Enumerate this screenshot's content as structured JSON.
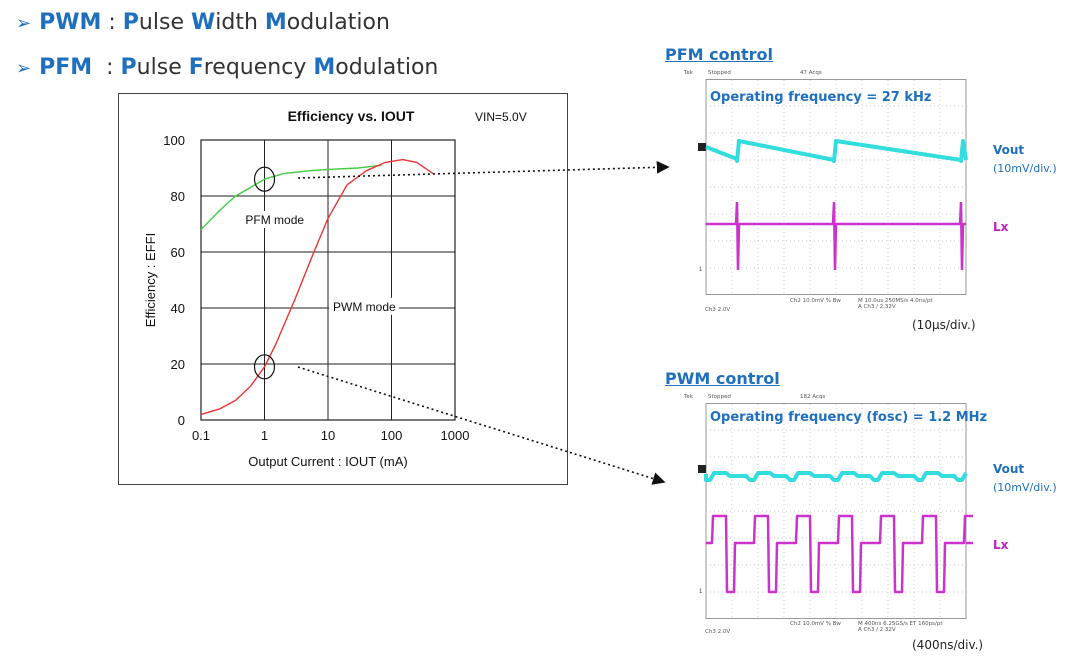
{
  "bullets": [
    {
      "abbr": "PWM",
      "sep": " : ",
      "parts": [
        {
          "hl": "P",
          "rest": "ulse "
        },
        {
          "hl": "W",
          "rest": "idth "
        },
        {
          "hl": "M",
          "rest": "odulation"
        }
      ]
    },
    {
      "abbr": "PFM",
      "sep": "  : ",
      "parts": [
        {
          "hl": "P",
          "rest": "ulse "
        },
        {
          "hl": "F",
          "rest": "requency "
        },
        {
          "hl": "M",
          "rest": "odulation"
        }
      ]
    }
  ],
  "chart_data": {
    "type": "line",
    "title": "Efficiency vs. IOUT",
    "condition": "VIN=5.0V",
    "xlabel": "Output Current : IOUT (mA)",
    "ylabel": "Efficiency : EFFI",
    "x_scale": "log",
    "xlim": [
      0.1,
      1000
    ],
    "ylim": [
      0,
      100
    ],
    "x_ticks": [
      "0.1",
      "1",
      "10",
      "100",
      "1000"
    ],
    "y_ticks": [
      "0",
      "20",
      "40",
      "60",
      "80",
      "100"
    ],
    "grid": true,
    "series": [
      {
        "name": "PFM mode",
        "color": "#44cc44",
        "x": [
          0.1,
          0.2,
          0.35,
          0.6,
          1,
          2,
          5,
          10,
          30,
          70
        ],
        "y": [
          68,
          75,
          80,
          83,
          86,
          88,
          89,
          89.5,
          90,
          91
        ]
      },
      {
        "name": "PWM mode",
        "color": "#ee3333",
        "x": [
          0.1,
          0.2,
          0.35,
          0.6,
          1,
          1.5,
          3,
          6,
          10,
          20,
          40,
          80,
          150,
          250,
          450
        ],
        "y": [
          2,
          4,
          7,
          12,
          19,
          27,
          43,
          60,
          72,
          84,
          89,
          92,
          93,
          92,
          88
        ]
      }
    ],
    "annotations": [
      {
        "text": "PFM mode",
        "x": 0.5,
        "y": 70
      },
      {
        "text": "PWM mode",
        "x": 12,
        "y": 39
      }
    ],
    "highlights": [
      {
        "x": 1,
        "y": 86
      },
      {
        "x": 1,
        "y": 19
      }
    ]
  },
  "scopes": [
    {
      "title": "PFM control",
      "header": [
        "Tek",
        "Stopped",
        "47 Acqs"
      ],
      "footer_left": "Ch3   2.0V",
      "footer_mid": "Ch2   10.0mV  % Bw",
      "footer_right": "M 10.0us 250MS/s   4.0ns/pt",
      "footer_right2": "A Ch3  / 2.32V",
      "frequency": "Operating frequency = 27 kHz",
      "vout": "Vout",
      "vout_div": "(10mV/div.)",
      "lx": "Lx",
      "time_div": "(10μs/div.)"
    },
    {
      "title": "PWM control",
      "header": [
        "Tek",
        "Stopped",
        "182 Acqs"
      ],
      "footer_left": "Ch3   2.0V",
      "footer_mid": "Ch2   10.0mV  % Bw",
      "footer_right": "M 400ns 6.25GS/s   ET 160ps/pt",
      "footer_right2": "A Ch3  / 2.32V",
      "frequency": "Operating frequency (fosc) = 1.2 MHz",
      "vout": "Vout",
      "vout_div": "(10mV/div.)",
      "lx": "Lx",
      "time_div": "(400ns/div.)"
    }
  ],
  "colors": {
    "accent": "#1f6fbf",
    "vout": "#33dddd",
    "lx": "#cc33cc"
  }
}
